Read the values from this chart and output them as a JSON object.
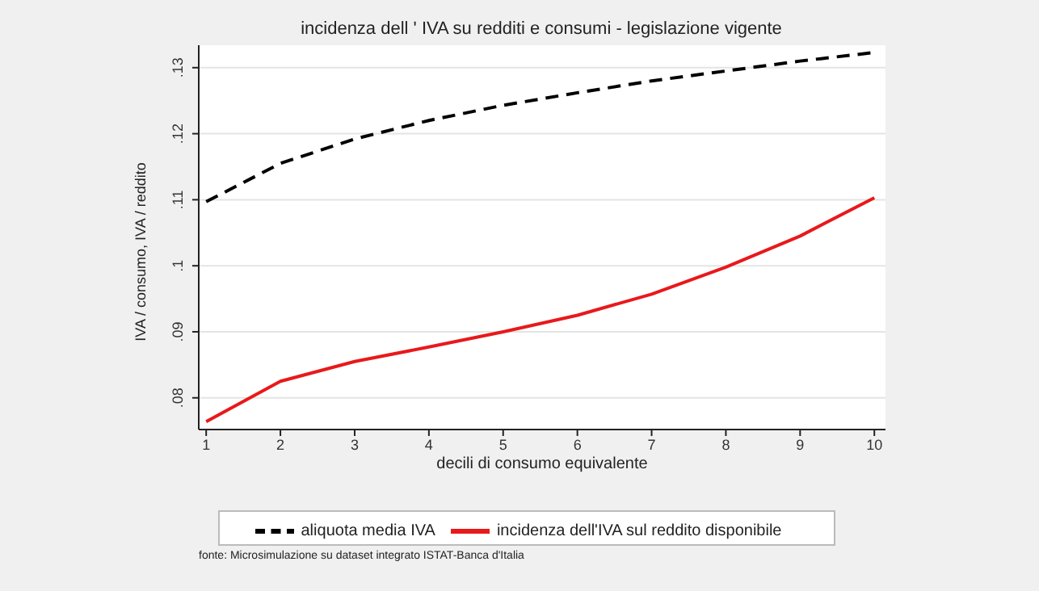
{
  "chart_data": {
    "type": "line",
    "title": "incidenza dell ' IVA su redditi e consumi - legislazione vigente",
    "xlabel": "decili di consumo equivalente",
    "ylabel": "IVA / consumo, IVA / reddito",
    "x": [
      1,
      2,
      3,
      4,
      5,
      6,
      7,
      8,
      9,
      10
    ],
    "series": [
      {
        "name": "aliquota media IVA",
        "color": "#000000",
        "line_style": "dashed",
        "values": [
          0.1097,
          0.1155,
          0.1192,
          0.122,
          0.1243,
          0.1262,
          0.128,
          0.1295,
          0.131,
          0.1323
        ]
      },
      {
        "name": "incidenza dell'IVA sul reddito disponibile",
        "color": "#e8191b",
        "line_style": "solid",
        "values": [
          0.0764,
          0.0825,
          0.0855,
          0.0877,
          0.09,
          0.0925,
          0.0957,
          0.0998,
          0.1045,
          0.1103
        ]
      }
    ],
    "xlim": [
      0.9,
      10.15
    ],
    "xticks": [
      1,
      2,
      3,
      4,
      5,
      6,
      7,
      8,
      9,
      10
    ],
    "ylim": [
      0.0752,
      0.1334
    ],
    "yticks": [
      {
        "value": 0.08,
        "label": ".08"
      },
      {
        "value": 0.09,
        "label": ".09"
      },
      {
        "value": 0.1,
        "label": ".1"
      },
      {
        "value": 0.11,
        "label": ".11"
      },
      {
        "value": 0.12,
        "label": ".12"
      },
      {
        "value": 0.13,
        "label": ".13"
      }
    ],
    "grid": "y",
    "legend": "bottom",
    "marker": "none",
    "annotations": [
      "fonte: Microsimulazione su dataset integrato ISTAT-Banca d'Italia"
    ]
  }
}
